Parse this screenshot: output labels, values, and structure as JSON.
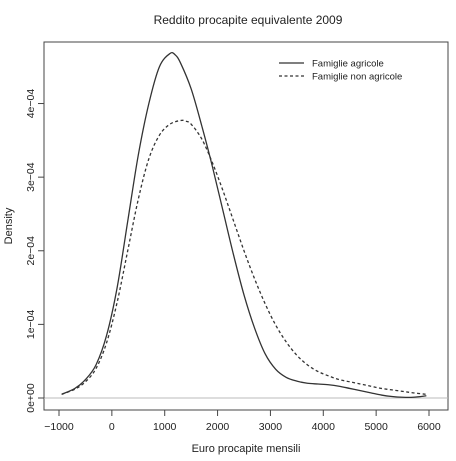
{
  "chart_data": {
    "type": "line",
    "title": "Reddito procapite equivalente 2009",
    "xlabel": "Euro procapite mensili",
    "ylabel": "Density",
    "xlim": [
      -1000,
      6000
    ],
    "ylim": [
      0,
      0.00047
    ],
    "x_ticks": [
      -1000,
      0,
      1000,
      2000,
      3000,
      4000,
      5000,
      6000
    ],
    "x_tick_labels": [
      "−1000",
      "0",
      "1000",
      "2000",
      "3000",
      "4000",
      "5000",
      "6000"
    ],
    "y_ticks": [
      0,
      0.0001,
      0.0002,
      0.0003,
      0.0004
    ],
    "y_tick_labels": [
      "0e+00",
      "1e−04",
      "2e−04",
      "3e−04",
      "4e−04"
    ],
    "grid": false,
    "baseline": 0,
    "legend_position": "top-right",
    "series": [
      {
        "name": "Famiglie agricole",
        "linestyle": "solid",
        "color": "#333333",
        "x": [
          -950,
          -700,
          -500,
          -300,
          -100,
          100,
          300,
          500,
          700,
          900,
          1100,
          1200,
          1300,
          1500,
          1700,
          1900,
          2100,
          2300,
          2500,
          2700,
          2900,
          3100,
          3300,
          3500,
          3700,
          3900,
          4100,
          4300,
          4500,
          4700,
          4900,
          5100,
          5300,
          5500,
          5700,
          5950
        ],
        "y": [
          5e-06,
          1.3e-05,
          2.5e-05,
          4.5e-05,
          8.5e-05,
          0.00015,
          0.00024,
          0.00033,
          0.0004,
          0.00045,
          0.000468,
          0.000466,
          0.000455,
          0.00042,
          0.00037,
          0.000315,
          0.000255,
          0.000195,
          0.00014,
          9.5e-05,
          6e-05,
          3.9e-05,
          2.8e-05,
          2.3e-05,
          2e-05,
          1.9e-05,
          1.8e-05,
          1.6e-05,
          1.3e-05,
          1e-05,
          7e-06,
          4e-06,
          2e-06,
          1e-06,
          1e-06,
          3e-06
        ]
      },
      {
        "name": "Famiglie non agricole",
        "linestyle": "dashed",
        "color": "#333333",
        "x": [
          -950,
          -700,
          -500,
          -300,
          -100,
          100,
          300,
          500,
          700,
          900,
          1100,
          1300,
          1400,
          1500,
          1700,
          1900,
          2100,
          2300,
          2500,
          2700,
          2900,
          3100,
          3300,
          3500,
          3700,
          3900,
          4100,
          4300,
          4500,
          4700,
          4900,
          5100,
          5300,
          5500,
          5700,
          5950
        ],
        "y": [
          5e-06,
          1.2e-05,
          2.2e-05,
          4e-05,
          7.5e-05,
          0.00013,
          0.0002,
          0.00027,
          0.000325,
          0.000357,
          0.000372,
          0.000377,
          0.000376,
          0.000372,
          0.000352,
          0.00032,
          0.000282,
          0.000241,
          0.0002,
          0.000162,
          0.000128,
          9.9e-05,
          7.6e-05,
          5.8e-05,
          4.5e-05,
          3.6e-05,
          3e-05,
          2.5e-05,
          2.2e-05,
          1.9e-05,
          1.6e-05,
          1.3e-05,
          1.1e-05,
          9e-06,
          7e-06,
          5e-06
        ]
      }
    ]
  }
}
